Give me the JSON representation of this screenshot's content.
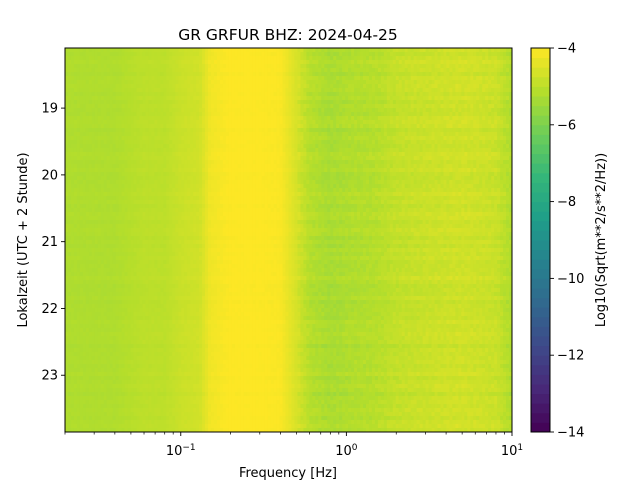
{
  "chart_data": {
    "type": "heatmap",
    "title": "GR GRFUR  BHZ: 2024-04-25",
    "xlabel": "Frequency [Hz]",
    "ylabel": "Lokalzeit (UTC + 2 Stunde)",
    "xscale": "log",
    "xlim": [
      0.02,
      10
    ],
    "x_ticks": [
      0.1,
      1,
      10
    ],
    "x_tick_labels": [
      {
        "base": "10",
        "exp": "−1"
      },
      {
        "base": "10",
        "exp": "0"
      },
      {
        "base": "10",
        "exp": "1"
      }
    ],
    "ylim": [
      18.1,
      23.85
    ],
    "y_inverted": true,
    "y_ticks": [
      19,
      20,
      21,
      22,
      23
    ],
    "y_tick_labels": [
      "19",
      "20",
      "21",
      "22",
      "23"
    ],
    "colorbar": {
      "label": "Log10(Sqrt(m**2/s**2/Hz))",
      "colormap": "viridis",
      "range": [
        -14,
        -4
      ],
      "ticks": [
        -14,
        -12,
        -10,
        -8,
        -6,
        -4
      ],
      "tick_labels": [
        "−14",
        "−12",
        "−10",
        "−8",
        "−6",
        "−4"
      ]
    },
    "spectral_profile": {
      "frequency_hz": [
        0.02,
        0.04,
        0.06,
        0.08,
        0.1,
        0.13,
        0.15,
        0.2,
        0.3,
        0.4,
        0.5,
        0.6,
        0.8,
        1.0,
        1.5,
        2,
        3,
        5,
        8,
        10
      ],
      "level_log10": [
        -5.2,
        -5.2,
        -5.0,
        -5.0,
        -4.8,
        -4.7,
        -4.2,
        -4.0,
        -4.0,
        -4.05,
        -4.6,
        -5.1,
        -5.3,
        -5.2,
        -5.1,
        -4.9,
        -4.8,
        -4.7,
        -4.8,
        -5.2
      ]
    }
  }
}
